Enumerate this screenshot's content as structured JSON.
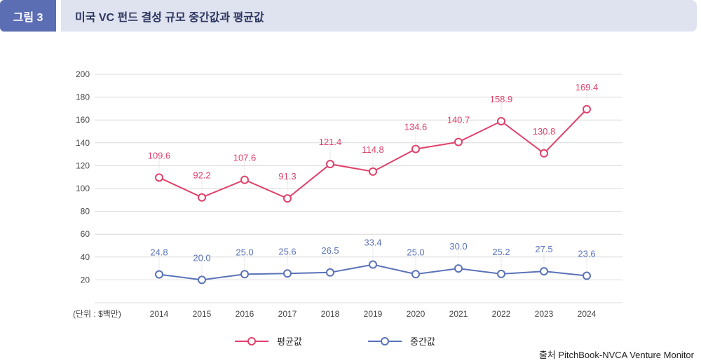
{
  "header": {
    "figure_label": "그림 3",
    "title": "미국 VC 펀드 결성 규모 중간값과 평균값"
  },
  "unit_label": "(단위 : $백만)",
  "source": "출처 PitchBook-NVCA Venture Monitor",
  "colors": {
    "mean": "#e0416b",
    "median": "#5a72b8",
    "tag": "#5b6db3",
    "title_bar": "#dfe3ef"
  },
  "chart_data": {
    "type": "line",
    "categories": [
      "2014",
      "2015",
      "2016",
      "2017",
      "2018",
      "2019",
      "2020",
      "2021",
      "2022",
      "2023",
      "2024"
    ],
    "series": [
      {
        "name": "평균값",
        "values": [
          109.6,
          92.2,
          107.6,
          91.3,
          121.4,
          114.8,
          134.6,
          140.7,
          158.9,
          130.8,
          169.4
        ]
      },
      {
        "name": "중간값",
        "values": [
          24.8,
          20.0,
          25.0,
          25.6,
          26.5,
          33.4,
          25.0,
          30.0,
          25.2,
          27.5,
          23.6
        ]
      }
    ],
    "ylim": [
      0,
      200
    ],
    "yticks": [
      20,
      40,
      60,
      80,
      100,
      120,
      140,
      160,
      180,
      200
    ],
    "grid": true,
    "legend": "bottom"
  }
}
